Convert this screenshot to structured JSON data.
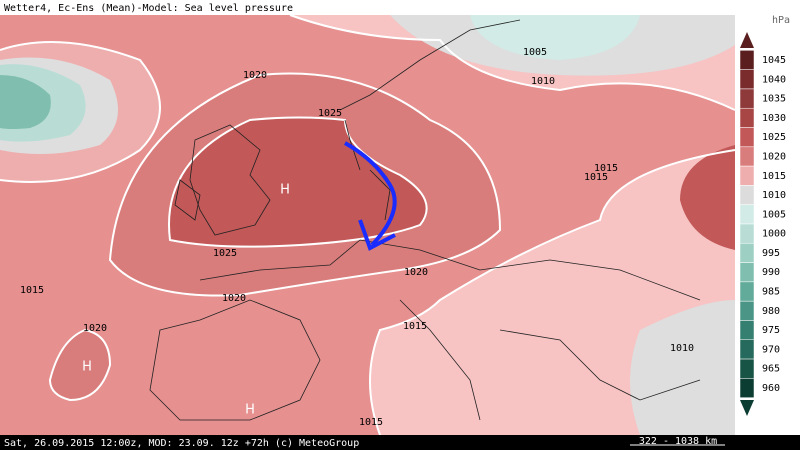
{
  "header": {
    "title": "Wetter4, Ec-Ens (Mean)-Model: Sea level pressure"
  },
  "legend": {
    "unit": "hPa",
    "levels": [
      1045,
      1040,
      1035,
      1030,
      1025,
      1020,
      1015,
      1010,
      1005,
      1000,
      995,
      990,
      985,
      980,
      975,
      970,
      965,
      960
    ],
    "colors": [
      "#5a1e1e",
      "#7a2c2c",
      "#8e3a3a",
      "#a84545",
      "#c25858",
      "#d97c7c",
      "#efaeae",
      "#dcdcdc",
      "#d2ebe6",
      "#b9ddd5",
      "#9dcfc3",
      "#80bfb0",
      "#62aa99",
      "#4a9585",
      "#357f70",
      "#256a5c",
      "#175446",
      "#0b3d32"
    ]
  },
  "isobar_labels": [
    "1020",
    "1025",
    "1005",
    "1010",
    "1015",
    "1015",
    "1025",
    "1020",
    "1015",
    "1020",
    "1020",
    "1015",
    "1010",
    "1015"
  ],
  "highs": [
    "H",
    "H",
    "H"
  ],
  "footer": {
    "run": "Sat, 26.09.2015 12:00z, MOD: 23.09. 12z +72h (c) MeteoGroup",
    "scale": "322 - 1038 km"
  }
}
